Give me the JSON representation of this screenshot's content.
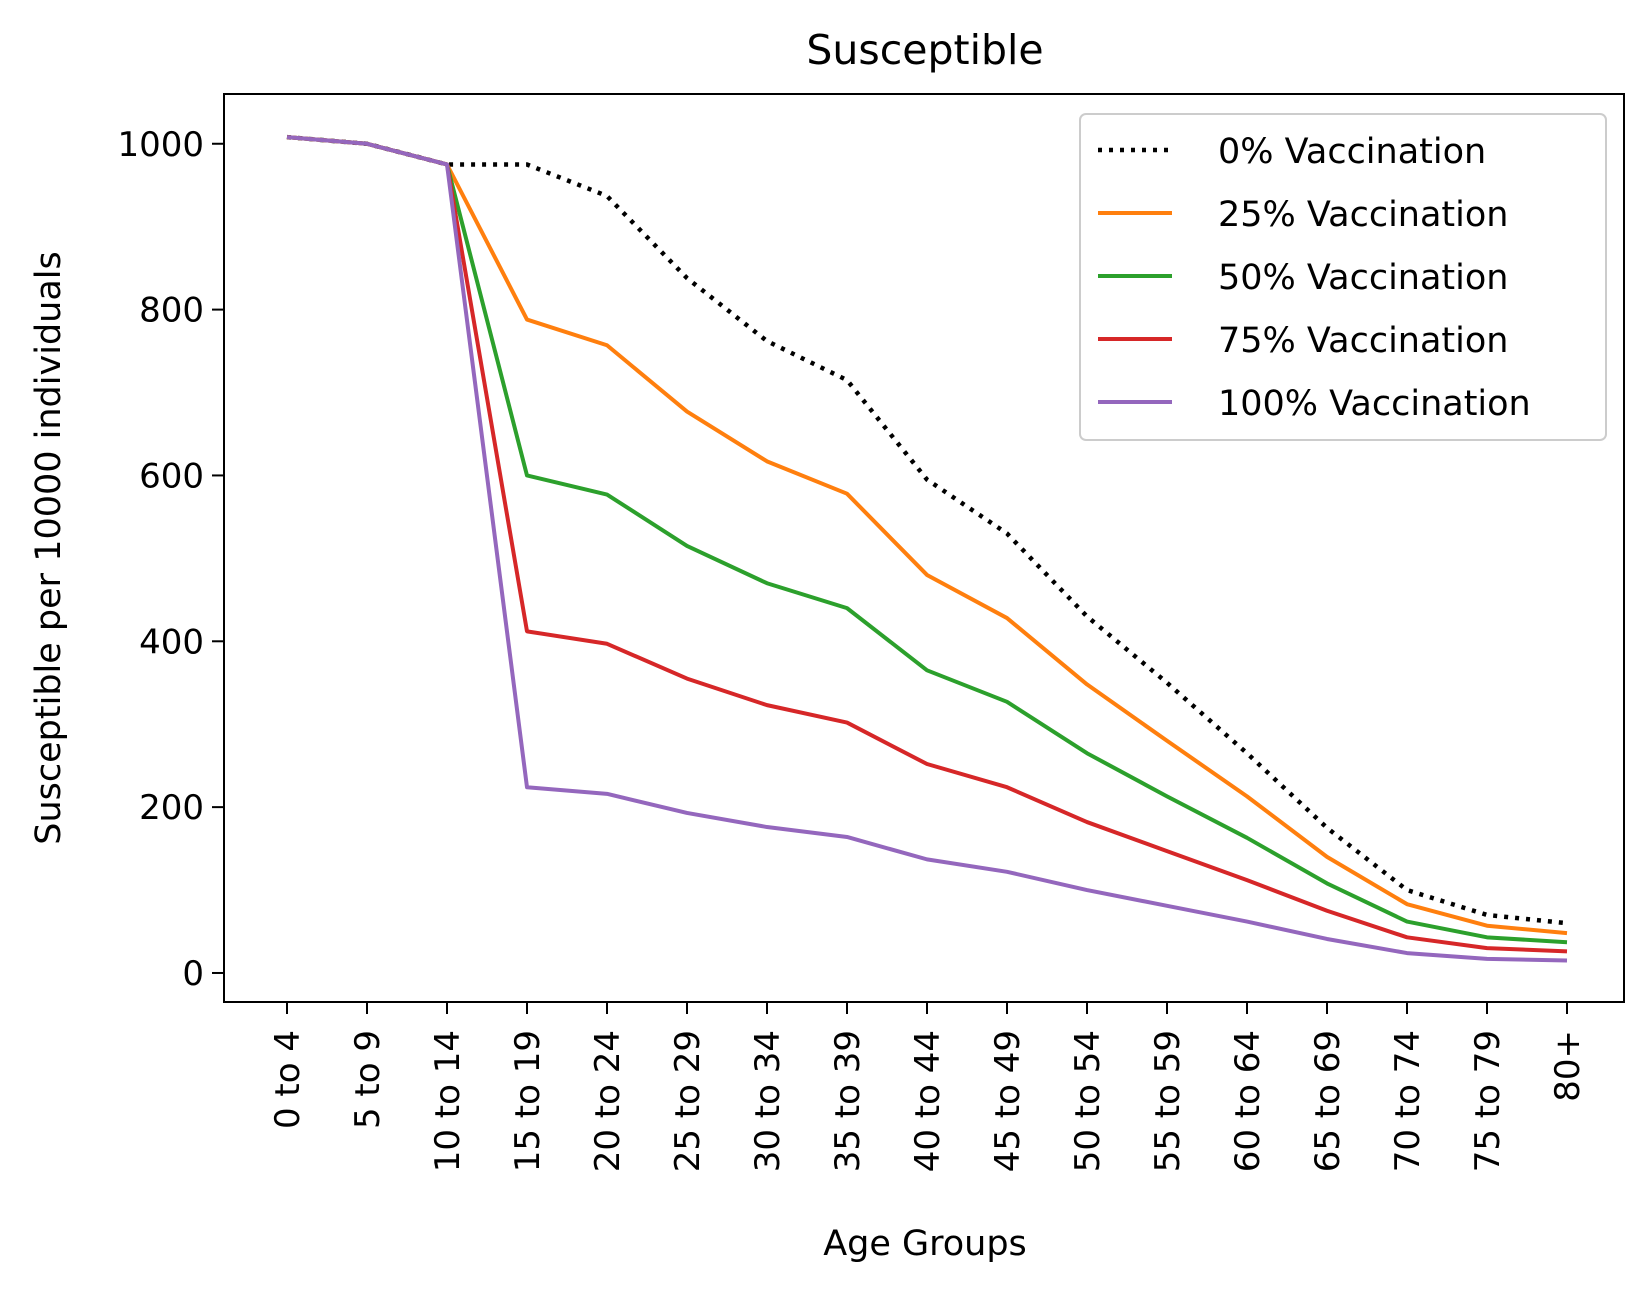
{
  "chart_data": {
    "type": "line",
    "title": "Susceptible",
    "xlabel": "Age Groups",
    "ylabel": "Susceptible per 10000 individuals",
    "categories": [
      "0 to 4",
      "5 to 9",
      "10 to 14",
      "15 to 19",
      "20 to 24",
      "25 to 29",
      "30 to 34",
      "35 to 39",
      "40 to 44",
      "45 to 49",
      "50 to 54",
      "55 to 59",
      "60 to 64",
      "65 to 69",
      "70 to 74",
      "75 to 79",
      "80+"
    ],
    "ylim": [
      -35,
      1060
    ],
    "yticks": [
      0,
      200,
      400,
      600,
      800,
      1000
    ],
    "grid": false,
    "legend_position": "top-right",
    "series": [
      {
        "name": "0% Vaccination",
        "color": "#000000",
        "style": "dotted",
        "values": [
          1008,
          1000,
          975,
          975,
          937,
          838,
          762,
          715,
          595,
          530,
          430,
          350,
          265,
          175,
          100,
          70,
          60
        ]
      },
      {
        "name": "25% Vaccination",
        "color": "#ff7f0e",
        "style": "solid",
        "values": [
          1008,
          1000,
          975,
          788,
          757,
          677,
          617,
          578,
          480,
          428,
          348,
          280,
          213,
          140,
          83,
          57,
          48
        ]
      },
      {
        "name": "50% Vaccination",
        "color": "#2ca02c",
        "style": "solid",
        "values": [
          1008,
          1000,
          975,
          600,
          577,
          515,
          470,
          440,
          365,
          327,
          265,
          213,
          163,
          108,
          62,
          43,
          37
        ]
      },
      {
        "name": "75% Vaccination",
        "color": "#d62728",
        "style": "solid",
        "values": [
          1008,
          1000,
          975,
          412,
          397,
          355,
          323,
          302,
          252,
          224,
          182,
          147,
          112,
          75,
          43,
          30,
          26
        ]
      },
      {
        "name": "100% Vaccination",
        "color": "#9467bd",
        "style": "solid",
        "values": [
          1008,
          1000,
          975,
          224,
          216,
          193,
          176,
          164,
          137,
          122,
          100,
          81,
          62,
          41,
          24,
          17,
          15
        ]
      }
    ]
  }
}
